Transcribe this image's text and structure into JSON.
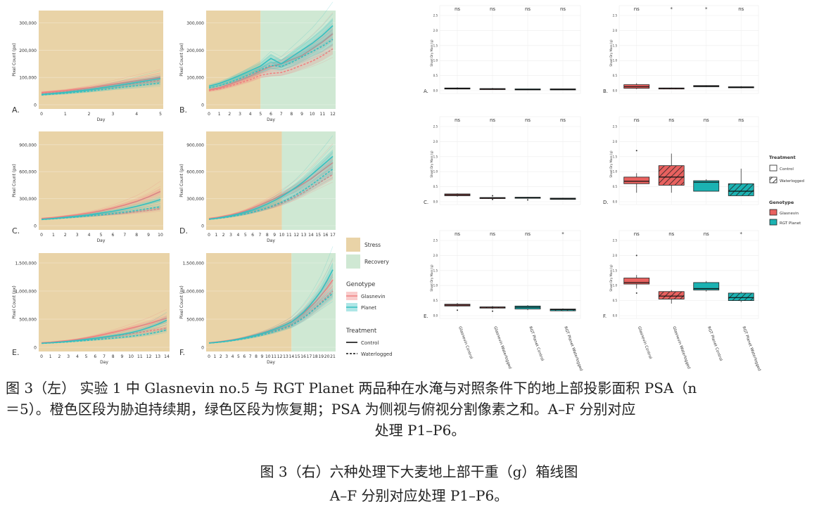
{
  "line_panels": {
    "ylabel": "Pixel Count (px)",
    "xlabel": "Day",
    "colors": {
      "stress": "#e9d3a7",
      "recovery": "#cfe8d3",
      "glasnevin": "#f08080",
      "planet": "#35c0c0"
    },
    "panels": [
      {
        "label": "A.",
        "days": [
          0,
          1,
          2,
          3,
          4,
          5
        ],
        "stress_until": 5,
        "yticks": [
          0,
          100000,
          200000,
          300000
        ],
        "ytick_labels": [
          "0",
          "100,000",
          "200,000",
          "300,000"
        ],
        "ymax": 330000,
        "series": [
          {
            "genotype": "Glasnevin",
            "treatment": "Control",
            "y": [
              45000,
              52000,
              62000,
              75000,
              88000,
              100000
            ]
          },
          {
            "genotype": "Glasnevin",
            "treatment": "Waterlogged",
            "y": [
              42000,
              48000,
              56000,
              66000,
              78000,
              90000
            ]
          },
          {
            "genotype": "Planet",
            "treatment": "Control",
            "y": [
              38000,
              45000,
              55000,
              68000,
              82000,
              96000
            ]
          },
          {
            "genotype": "Planet",
            "treatment": "Waterlogged",
            "y": [
              36000,
              42000,
              50000,
              60000,
              70000,
              80000
            ]
          }
        ]
      },
      {
        "label": "B.",
        "days": [
          0,
          1,
          2,
          3,
          4,
          5,
          6,
          7,
          8,
          9,
          10,
          11,
          12
        ],
        "stress_until": 5,
        "yticks": [
          0,
          100000,
          200000,
          300000
        ],
        "ytick_labels": [
          "0",
          "100,000",
          "200,000",
          "300,000"
        ],
        "ymax": 330000,
        "series": [
          {
            "genotype": "Glasnevin",
            "treatment": "Control",
            "y": [
              55000,
              62000,
              75000,
              90000,
              105000,
              125000,
              140000,
              150000,
              165000,
              180000,
              205000,
              230000,
              260000
            ]
          },
          {
            "genotype": "Glasnevin",
            "treatment": "Waterlogged",
            "y": [
              52000,
              58000,
              68000,
              80000,
              92000,
              108000,
              115000,
              118000,
              130000,
              145000,
              160000,
              180000,
              205000
            ]
          },
          {
            "genotype": "Planet",
            "treatment": "Control",
            "y": [
              68000,
              78000,
              92000,
              108000,
              125000,
              142000,
              170000,
              150000,
              175000,
              200000,
              225000,
              255000,
              290000
            ]
          },
          {
            "genotype": "Planet",
            "treatment": "Waterlogged",
            "y": [
              62000,
              70000,
              82000,
              96000,
              112000,
              128000,
              145000,
              140000,
              155000,
              175000,
              195000,
              215000,
              240000
            ]
          }
        ]
      },
      {
        "label": "C.",
        "days": [
          0,
          1,
          2,
          3,
          4,
          5,
          6,
          7,
          8,
          9,
          10
        ],
        "stress_until": 10,
        "yticks": [
          0,
          300000,
          600000,
          900000
        ],
        "ytick_labels": [
          "0",
          "300,000",
          "600,000",
          "900,000"
        ],
        "ymax": 1000000,
        "series": [
          {
            "genotype": "Glasnevin",
            "treatment": "Control",
            "y": [
              80000,
              90000,
              105000,
              120000,
              140000,
              165000,
              195000,
              230000,
              270000,
              320000,
              380000
            ]
          },
          {
            "genotype": "Glasnevin",
            "treatment": "Waterlogged",
            "y": [
              75000,
              80000,
              90000,
              100000,
              110000,
              120000,
              130000,
              140000,
              155000,
              170000,
              190000
            ]
          },
          {
            "genotype": "Planet",
            "treatment": "Control",
            "y": [
              70000,
              80000,
              92000,
              105000,
              120000,
              140000,
              160000,
              185000,
              215000,
              250000,
              290000
            ]
          },
          {
            "genotype": "Planet",
            "treatment": "Waterlogged",
            "y": [
              68000,
              76000,
              86000,
              96000,
              108000,
              120000,
              135000,
              150000,
              170000,
              190000,
              210000
            ]
          }
        ]
      },
      {
        "label": "D.",
        "days": [
          0,
          1,
          2,
          3,
          4,
          5,
          6,
          7,
          8,
          9,
          10,
          11,
          12,
          13,
          14,
          15,
          16,
          17
        ],
        "stress_until": 10,
        "yticks": [
          0,
          300000,
          600000,
          900000
        ],
        "ytick_labels": [
          "0",
          "300,000",
          "600,000",
          "900,000"
        ],
        "ymax": 1000000,
        "series": [
          {
            "genotype": "Glasnevin",
            "treatment": "Control",
            "y": [
              80000,
              90000,
              105000,
              120000,
              140000,
              165000,
              195000,
              230000,
              265000,
              300000,
              340000,
              380000,
              420000,
              470000,
              520000,
              580000,
              640000,
              700000
            ]
          },
          {
            "genotype": "Glasnevin",
            "treatment": "Waterlogged",
            "y": [
              75000,
              82000,
              92000,
              104000,
              118000,
              134000,
              152000,
              172000,
              195000,
              220000,
              250000,
              285000,
              325000,
              370000,
              420000,
              470000,
              520000,
              570000
            ]
          },
          {
            "genotype": "Planet",
            "treatment": "Control",
            "y": [
              72000,
              82000,
              95000,
              110000,
              128000,
              150000,
              175000,
              205000,
              240000,
              280000,
              325000,
              375000,
              430000,
              490000,
              560000,
              630000,
              700000,
              770000
            ]
          },
          {
            "genotype": "Planet",
            "treatment": "Waterlogged",
            "y": [
              70000,
              78000,
              88000,
              100000,
              114000,
              130000,
              150000,
              172000,
              198000,
              228000,
              262000,
              300000,
              345000,
              395000,
              450000,
              510000,
              570000,
              630000
            ]
          }
        ]
      },
      {
        "label": "E.",
        "days": [
          0,
          1,
          2,
          3,
          4,
          5,
          6,
          7,
          8,
          9,
          10,
          11,
          12,
          13,
          14
        ],
        "stress_until": 14,
        "yticks": [
          0,
          500000,
          1000000,
          1500000
        ],
        "ytick_labels": [
          "0",
          "500,000",
          "1,000,000",
          "1,500,000"
        ],
        "ymax": 1600000,
        "series": [
          {
            "genotype": "Glasnevin",
            "treatment": "Control",
            "y": [
              80000,
              90000,
              105000,
              120000,
              140000,
              165000,
              195000,
              230000,
              265000,
              300000,
              340000,
              380000,
              420000,
              470000,
              520000
            ]
          },
          {
            "genotype": "Glasnevin",
            "treatment": "Waterlogged",
            "y": [
              75000,
              82000,
              92000,
              104000,
              118000,
              134000,
              152000,
              172000,
              195000,
              215000,
              240000,
              265000,
              290000,
              315000,
              340000
            ]
          },
          {
            "genotype": "Planet",
            "treatment": "Control",
            "y": [
              72000,
              80000,
              92000,
              106000,
              122000,
              140000,
              160000,
              182000,
              205000,
              230000,
              260000,
              300000,
              350000,
              410000,
              480000
            ]
          },
          {
            "genotype": "Planet",
            "treatment": "Waterlogged",
            "y": [
              70000,
              77000,
              86000,
              96000,
              108000,
              120000,
              134000,
              148000,
              162000,
              178000,
              195000,
              215000,
              240000,
              270000,
              310000
            ]
          }
        ]
      },
      {
        "label": "F.",
        "days": [
          0,
          1,
          2,
          3,
          4,
          5,
          6,
          7,
          8,
          9,
          10,
          11,
          12,
          13,
          14,
          15,
          16,
          17,
          18,
          19,
          20,
          21
        ],
        "stress_until": 14,
        "yticks": [
          0,
          500000,
          1000000,
          1500000
        ],
        "ytick_labels": [
          "0",
          "500,000",
          "1,000,000",
          "1,500,000"
        ],
        "ymax": 1600000,
        "series": [
          {
            "genotype": "Glasnevin",
            "treatment": "Control",
            "y": [
              80000,
              90000,
              102000,
              116000,
              132000,
              150000,
              172000,
              196000,
              222000,
              250000,
              282000,
              318000,
              358000,
              402000,
              450000,
              520000,
              600000,
              700000,
              800000,
              920000,
              1050000,
              1200000
            ]
          },
          {
            "genotype": "Glasnevin",
            "treatment": "Waterlogged",
            "y": [
              78000,
              87000,
              98000,
              110000,
              124000,
              140000,
              160000,
              182000,
              206000,
              232000,
              260000,
              292000,
              326000,
              362000,
              400000,
              460000,
              530000,
              610000,
              700000,
              800000,
              900000,
              1000000
            ]
          },
          {
            "genotype": "Planet",
            "treatment": "Control",
            "y": [
              76000,
              85000,
              96000,
              110000,
              126000,
              145000,
              166000,
              190000,
              216000,
              245000,
              278000,
              315000,
              356000,
              400000,
              450000,
              530000,
              620000,
              730000,
              860000,
              1000000,
              1180000,
              1380000
            ]
          },
          {
            "genotype": "Planet",
            "treatment": "Waterlogged",
            "y": [
              74000,
              82000,
              92000,
              104000,
              118000,
              134000,
              152000,
              172000,
              194000,
              218000,
              245000,
              275000,
              308000,
              345000,
              385000,
              450000,
              520000,
              600000,
              690000,
              780000,
              870000,
              960000
            ]
          }
        ]
      }
    ],
    "legend": {
      "stress_label": "Stress",
      "recovery_label": "Recovery",
      "genotype_title": "Genotype",
      "genotype_items": [
        "Glasnevin",
        "Planet"
      ],
      "treatment_title": "Treatment",
      "treatment_items": [
        "Control",
        "Waterlogged"
      ]
    }
  },
  "chart_data": {
    "type": "box",
    "ylabel": "Shoot Dry Mass (g)",
    "ylim": [
      0,
      2.5
    ],
    "yticks": [
      0,
      0.5,
      1,
      1.5,
      2,
      2.5
    ],
    "ytick_labels": [
      "0.0",
      "0.5",
      "1.0",
      "1.5",
      "2.0",
      "2.5"
    ],
    "categories": [
      "Glasnevin Control",
      "Glasnevin Waterlogged",
      "RGT Planet Control",
      "RGT Planet Waterlogged"
    ],
    "panels": [
      {
        "label": "A.",
        "sig": [
          "ns",
          "ns",
          "ns",
          "ns"
        ],
        "boxes": [
          [
            0.04,
            0.06,
            0.07,
            0.09,
            0.11
          ],
          [
            0.03,
            0.05,
            0.06,
            0.07,
            0.09
          ],
          [
            0.02,
            0.03,
            0.04,
            0.06,
            0.07
          ],
          [
            0.02,
            0.04,
            0.05,
            0.06,
            0.07
          ]
        ],
        "outliers": [
          [],
          [],
          [],
          []
        ]
      },
      {
        "label": "B.",
        "sig": [
          "ns",
          "*",
          "*",
          "ns"
        ],
        "boxes": [
          [
            0.05,
            0.08,
            0.13,
            0.2,
            0.25
          ],
          [
            0.05,
            0.07,
            0.08,
            0.09,
            0.1
          ],
          [
            0.12,
            0.13,
            0.15,
            0.17,
            0.18
          ],
          [
            0.08,
            0.1,
            0.12,
            0.13,
            0.15
          ]
        ],
        "outliers": [
          [],
          [],
          [],
          []
        ]
      },
      {
        "label": "C.",
        "sig": [
          "ns",
          "ns",
          "ns",
          "ns"
        ],
        "boxes": [
          [
            0.17,
            0.2,
            0.23,
            0.26,
            0.28
          ],
          [
            0.1,
            0.12,
            0.13,
            0.14,
            0.15
          ],
          [
            0.1,
            0.12,
            0.14,
            0.15,
            0.16
          ],
          [
            0.07,
            0.08,
            0.1,
            0.12,
            0.13
          ]
        ],
        "outliers": [
          [],
          [
            0.2,
            0.08
          ],
          [
            0.06
          ],
          []
        ]
      },
      {
        "label": "D.",
        "sig": [
          "ns",
          "ns",
          "ns",
          "ns"
        ],
        "boxes": [
          [
            0.3,
            0.6,
            0.68,
            0.82,
            0.95
          ],
          [
            0.3,
            0.55,
            0.82,
            1.2,
            1.6
          ],
          [
            0.35,
            0.35,
            0.65,
            0.7,
            0.75
          ],
          [
            0.2,
            0.2,
            0.35,
            0.6,
            1.1
          ]
        ],
        "outliers": [
          [
            1.7
          ],
          [],
          [],
          []
        ]
      },
      {
        "label": "E.",
        "sig": [
          "ns",
          "ns",
          "ns",
          "*"
        ],
        "boxes": [
          [
            0.3,
            0.32,
            0.35,
            0.38,
            0.42
          ],
          [
            0.22,
            0.25,
            0.28,
            0.29,
            0.32
          ],
          [
            0.18,
            0.22,
            0.28,
            0.32,
            0.35
          ],
          [
            0.15,
            0.16,
            0.2,
            0.22,
            0.24
          ]
        ],
        "outliers": [
          [
            0.18
          ],
          [
            0.15
          ],
          [],
          []
        ]
      },
      {
        "label": "F.",
        "sig": [
          "ns",
          "ns",
          "ns",
          "*"
        ],
        "boxes": [
          [
            0.9,
            1.05,
            1.1,
            1.25,
            1.35
          ],
          [
            0.4,
            0.55,
            0.65,
            0.8,
            0.85
          ],
          [
            0.8,
            0.85,
            0.9,
            1.1,
            1.15
          ],
          [
            0.45,
            0.5,
            0.6,
            0.75,
            0.8
          ]
        ],
        "outliers": [
          [
            2.0,
            0.75
          ],
          [],
          [],
          []
        ]
      }
    ],
    "legend": {
      "treatment_title": "Treatment",
      "treatment_items": [
        "Control",
        "Waterlogged"
      ],
      "genotype_title": "Genotype",
      "genotype_items": [
        "Glasnevin",
        "RGT Planet"
      ]
    },
    "colors": {
      "glasnevin": "#e8615f",
      "planet": "#1bb2b2"
    }
  },
  "caption": {
    "line1": "图 3（左） 实验 1 中 Glasnevin no.5 与 RGT Planet 两品种在水淹与对照条件下的地上部投影面积 PSA（n",
    "line2": "＝5）。橙色区段为胁迫持续期，绿色区段为恢复期；PSA 为侧视与俯视分割像素之和。A–F 分别对应",
    "line3": "处理 P1–P6。",
    "right_line1": "图 3（右）六种处理下大麦地上部干重（g）箱线图",
    "right_line2": "A–F 分别对应处理 P1–P6。"
  }
}
